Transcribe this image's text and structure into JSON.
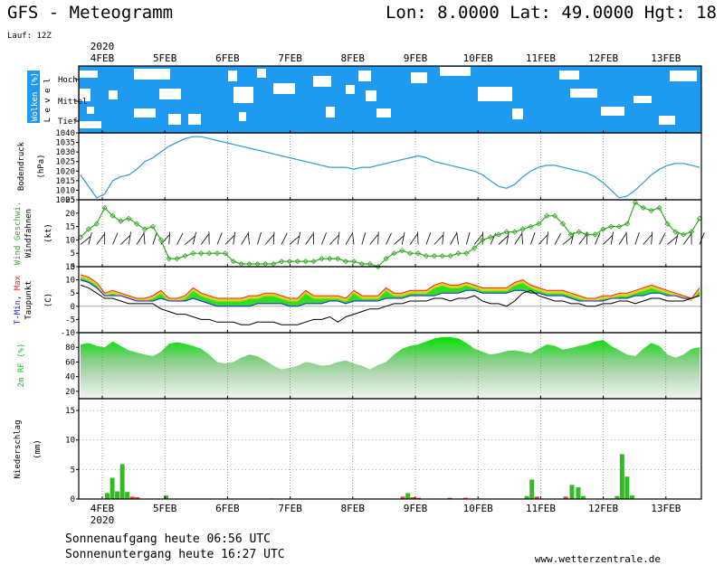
{
  "header": {
    "title": "GFS - Meteogramm",
    "coords": "Lon: 8.0000  Lat: 49.0000  Hgt: 18",
    "run": "Lauf: 12Z"
  },
  "footer": {
    "sunrise": "Sonnenaufgang heute 06:56 UTC",
    "sunset": "Sonnenuntergang heute 16:27 UTC",
    "site": "www.wetterzentrale.de"
  },
  "colors": {
    "cloud": "#1e9bf0",
    "pressure": "#2a9ad6",
    "wind": "#33aa22",
    "tmin": "#1a1aff",
    "tmax": "#ff2222",
    "humidity": "#1ee61e",
    "precip": "#33bb22",
    "precip_alt": "#ff3333"
  },
  "chart_data": {
    "type": "meteogram",
    "year_label": "2020",
    "dates": [
      "4FEB",
      "5FEB",
      "6FEB",
      "7FEB",
      "8FEB",
      "9FEB",
      "10FEB",
      "11FEB",
      "12FEB",
      "13FEB"
    ],
    "panels": [
      {
        "name": "clouds",
        "ylabel": "Wolken (%)",
        "ylabel2": "L e v e l",
        "levels": [
          "Hoch",
          "Mittel",
          "Tief"
        ]
      },
      {
        "name": "pressure",
        "ylabel": "Bodendruck",
        "unit": "(hPa)",
        "ylim": [
          1005,
          1040
        ],
        "yticks": [
          1005,
          1010,
          1015,
          1020,
          1025,
          1030,
          1035,
          1040
        ],
        "values": [
          1018,
          1012,
          1006,
          1008,
          1015,
          1017,
          1018,
          1021,
          1025,
          1027,
          1030,
          1033,
          1035,
          1037,
          1038,
          1038,
          1037,
          1036,
          1035,
          1034,
          1033,
          1032,
          1031,
          1030,
          1029,
          1028,
          1027,
          1026,
          1025,
          1024,
          1023,
          1022,
          1022,
          1022,
          1021,
          1022,
          1022,
          1023,
          1024,
          1025,
          1026,
          1027,
          1028,
          1027,
          1025,
          1024,
          1023,
          1022,
          1021,
          1020,
          1018,
          1015,
          1012,
          1011,
          1013,
          1017,
          1020,
          1022,
          1023,
          1023,
          1022,
          1021,
          1020,
          1019,
          1017,
          1014,
          1010,
          1006,
          1007,
          1010,
          1014,
          1018,
          1021,
          1023,
          1024,
          1024,
          1023,
          1022
        ]
      },
      {
        "name": "wind",
        "ylabel": "Wind Geschwi.",
        "ylabel2": "Windfahnen",
        "unit": "(kt)",
        "ylim": [
          0,
          25
        ],
        "yticks": [
          0,
          5,
          10,
          15,
          20,
          25
        ],
        "values": [
          11,
          14,
          16,
          22,
          19,
          17,
          18,
          16,
          14,
          15,
          10,
          3,
          3,
          4,
          5,
          5,
          5,
          5,
          5,
          2,
          1,
          1,
          1,
          1,
          1,
          2,
          2,
          2,
          2,
          2,
          3,
          3,
          3,
          2,
          2,
          1,
          1,
          0,
          3,
          5,
          6,
          5,
          5,
          4,
          4,
          4,
          4,
          5,
          5,
          7,
          10,
          11,
          12,
          13,
          13,
          14,
          15,
          16,
          19,
          19,
          16,
          12,
          13,
          12,
          12,
          14,
          15,
          15,
          16,
          24,
          22,
          21,
          22,
          16,
          13,
          12,
          13,
          18
        ]
      },
      {
        "name": "temperature",
        "ylabel": "T-Min, Max",
        "ylabel2": "Taupunkt",
        "unit": "(C)",
        "ylim": [
          -10,
          15
        ],
        "yticks": [
          -10,
          -5,
          0,
          5,
          10,
          15
        ],
        "legend": [
          "T-Min",
          "Max",
          "Taupunkt"
        ],
        "tmax": [
          12,
          11,
          9,
          5,
          6,
          5,
          4,
          3,
          3,
          4,
          6,
          3,
          3,
          4,
          7,
          5,
          4,
          3,
          3,
          3,
          3,
          4,
          4,
          5,
          5,
          4,
          3,
          3,
          6,
          4,
          4,
          4,
          4,
          3,
          6,
          4,
          4,
          4,
          7,
          5,
          5,
          6,
          6,
          6,
          8,
          9,
          8,
          8,
          9,
          8,
          7,
          7,
          7,
          7,
          9,
          10,
          8,
          7,
          6,
          6,
          6,
          5,
          4,
          3,
          3,
          4,
          4,
          5,
          5,
          6,
          7,
          8,
          7,
          6,
          5,
          4,
          3,
          7
        ],
        "tmin": [
          10,
          9,
          7,
          4,
          4,
          4,
          3,
          2,
          2,
          2,
          3,
          2,
          2,
          2,
          3,
          2,
          1,
          0,
          0,
          0,
          0,
          0,
          1,
          1,
          1,
          1,
          0,
          0,
          1,
          1,
          1,
          2,
          2,
          1,
          2,
          2,
          2,
          2,
          3,
          3,
          3,
          4,
          4,
          4,
          4,
          5,
          5,
          5,
          6,
          6,
          5,
          5,
          5,
          5,
          6,
          6,
          5,
          5,
          4,
          4,
          4,
          3,
          2,
          2,
          2,
          2,
          3,
          3,
          3,
          4,
          4,
          5,
          5,
          4,
          4,
          3,
          3,
          4
        ],
        "dewpoint": [
          8,
          7,
          5,
          3,
          3,
          2,
          1,
          1,
          1,
          1,
          -1,
          -2,
          -3,
          -3,
          -4,
          -5,
          -5,
          -6,
          -6,
          -6,
          -7,
          -7,
          -6,
          -6,
          -6,
          -7,
          -7,
          -7,
          -6,
          -5,
          -5,
          -4,
          -6,
          -4,
          -3,
          -2,
          -1,
          -1,
          0,
          1,
          1,
          2,
          2,
          2,
          3,
          3,
          2,
          3,
          3,
          4,
          2,
          1,
          1,
          0,
          2,
          5,
          6,
          4,
          3,
          2,
          2,
          1,
          1,
          0,
          0,
          1,
          1,
          2,
          2,
          1,
          2,
          3,
          3,
          2,
          2,
          2,
          3,
          4
        ]
      },
      {
        "name": "humidity",
        "ylabel": "2m RF (%)",
        "ylim": [
          10,
          100
        ],
        "yticks": [
          20,
          40,
          60,
          80
        ],
        "values": [
          84,
          86,
          82,
          80,
          88,
          82,
          76,
          73,
          70,
          68,
          74,
          85,
          87,
          85,
          82,
          78,
          70,
          60,
          58,
          60,
          66,
          70,
          68,
          62,
          55,
          50,
          52,
          55,
          60,
          58,
          55,
          56,
          60,
          62,
          58,
          55,
          50,
          56,
          60,
          70,
          78,
          82,
          84,
          88,
          92,
          94,
          94,
          92,
          86,
          78,
          74,
          70,
          72,
          75,
          76,
          74,
          72,
          78,
          84,
          82,
          77,
          79,
          82,
          84,
          88,
          90,
          82,
          76,
          70,
          68,
          78,
          86,
          82,
          70,
          66,
          70,
          78,
          80
        ]
      },
      {
        "name": "precip",
        "ylabel": "Niederschlag",
        "unit": "(mm)",
        "ylim": [
          0,
          17
        ],
        "yticks": [
          0,
          5,
          10,
          15
        ],
        "bars": [
          {
            "day": 0.08,
            "value": 1.0
          },
          {
            "day": 0.16,
            "value": 3.6
          },
          {
            "day": 0.24,
            "value": 1.3
          },
          {
            "day": 0.32,
            "value": 5.9
          },
          {
            "day": 0.4,
            "value": 1.2
          },
          {
            "day": 0.48,
            "value": 0.4
          },
          {
            "day": 0.56,
            "value": 0.3
          },
          {
            "day": 1.02,
            "value": 0.6
          },
          {
            "day": 2.7,
            "value": 0.1
          },
          {
            "day": 4.8,
            "value": 0.4
          },
          {
            "day": 4.88,
            "value": 1.0
          },
          {
            "day": 4.96,
            "value": 0.3
          },
          {
            "day": 5.05,
            "value": 0.2
          },
          {
            "day": 5.55,
            "value": 0.2
          },
          {
            "day": 5.8,
            "value": 0.2
          },
          {
            "day": 6.78,
            "value": 0.5
          },
          {
            "day": 6.86,
            "value": 3.3
          },
          {
            "day": 6.94,
            "value": 0.4
          },
          {
            "day": 7.4,
            "value": 0.4
          },
          {
            "day": 7.5,
            "value": 2.4
          },
          {
            "day": 7.6,
            "value": 2.0
          },
          {
            "day": 7.68,
            "value": 0.5
          },
          {
            "day": 8.22,
            "value": 0.5
          },
          {
            "day": 8.3,
            "value": 7.6
          },
          {
            "day": 8.38,
            "value": 3.8
          },
          {
            "day": 8.46,
            "value": 0.6
          }
        ]
      }
    ]
  }
}
